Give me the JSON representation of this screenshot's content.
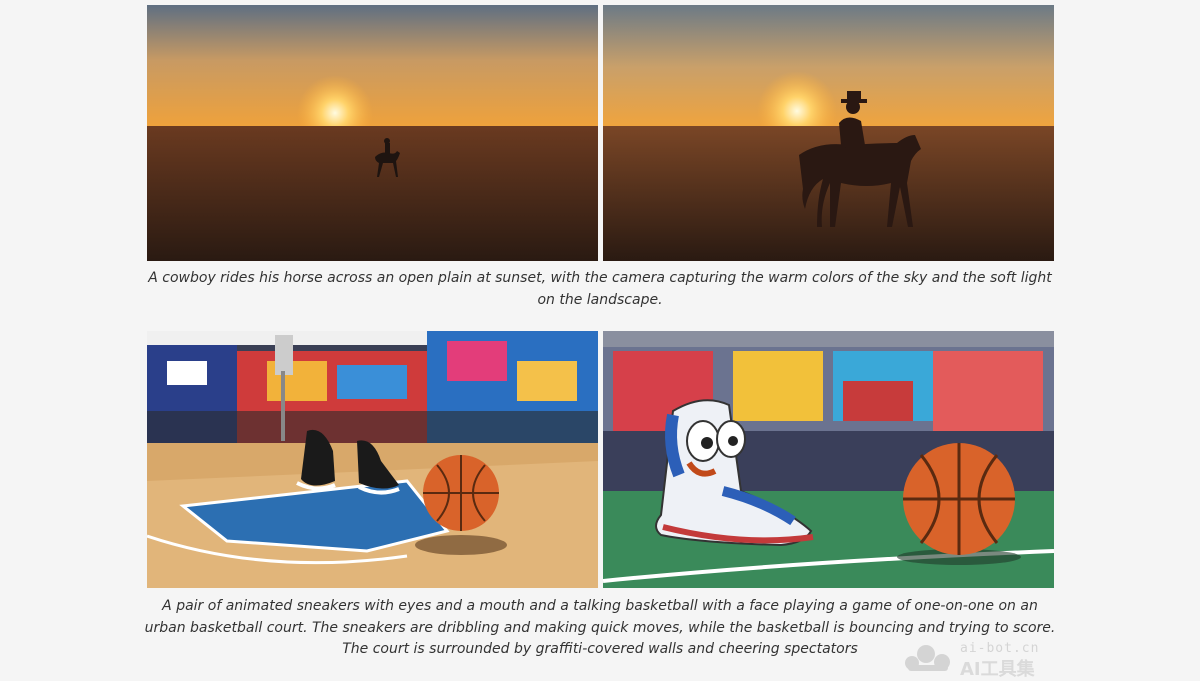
{
  "captions": {
    "cowboy": "A cowboy rides his horse across an open plain at sunset, with the camera capturing the warm colors of the sky and the soft light on the landscape.",
    "sneakers": "A pair of animated sneakers with eyes and a mouth and a talking basketball with a face playing a game of one-on-one on an urban basketball court. The sneakers are dribbling and making quick moves, while the basketball is bouncing and trying to score. The court is surrounded by graffiti-covered walls and cheering spectators"
  },
  "watermark": {
    "url": "ai-bot.cn",
    "text": "AI工具集"
  },
  "colors": {
    "sunset_orange": "#e8a24a",
    "court_blue": "#2c6fb2",
    "ball_orange": "#d9632a",
    "court_green": "#3a8a5a"
  }
}
